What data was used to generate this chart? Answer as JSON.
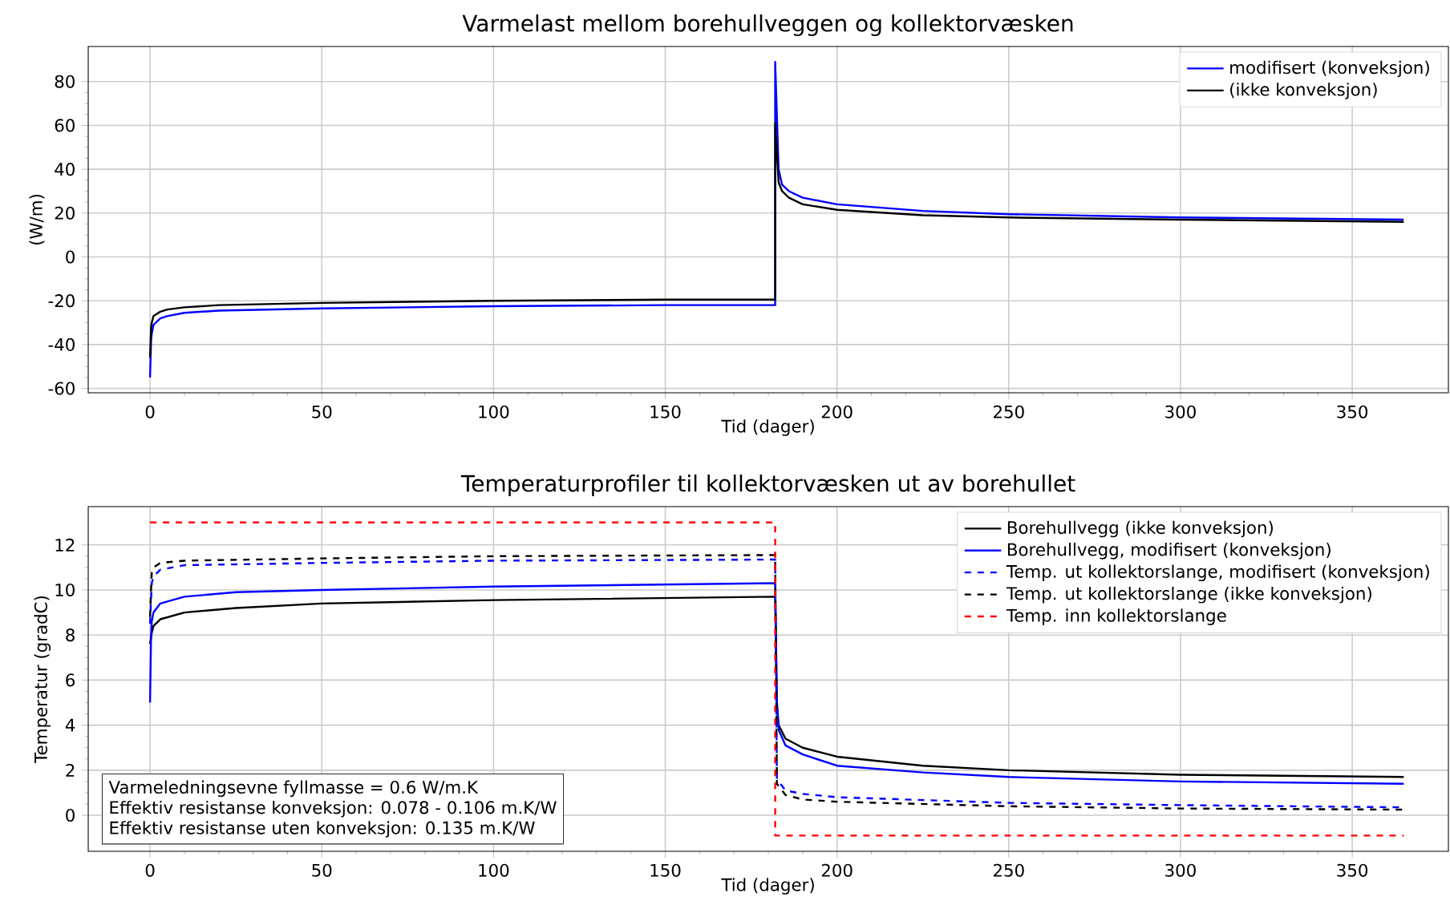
{
  "chart_data": [
    {
      "type": "line",
      "title": "Varmelast mellom borehullveggen og kollektorvæsken",
      "xlabel": "Tid (dager)",
      "ylabel": "(W/m)",
      "xlim": [
        -18,
        378
      ],
      "ylim": [
        -62,
        96
      ],
      "xticks": [
        0,
        50,
        100,
        150,
        200,
        250,
        300,
        350
      ],
      "yticks": [
        -60,
        -40,
        -20,
        0,
        20,
        40,
        60,
        80
      ],
      "grid": true,
      "legend": "top right",
      "series": [
        {
          "name": "modifisert (konveksjon)",
          "color": "#0000ff",
          "line_style": "solid",
          "x": [
            0,
            0.3,
            0.5,
            1,
            3,
            5,
            10,
            20,
            50,
            100,
            150,
            182,
            182,
            183,
            184,
            186,
            190,
            200,
            225,
            250,
            300,
            365
          ],
          "values": [
            -55,
            -38,
            -35,
            -31,
            -28,
            -27,
            -25.5,
            -24.5,
            -23.5,
            -22.5,
            -22,
            -22,
            89,
            40,
            33,
            30,
            27,
            24,
            21,
            19.5,
            18,
            17
          ]
        },
        {
          "name": "(ikke konveksjon)",
          "color": "#000000",
          "line_style": "solid",
          "x": [
            0,
            0.3,
            0.5,
            1,
            3,
            5,
            10,
            20,
            50,
            100,
            150,
            182,
            182,
            183,
            184,
            186,
            190,
            200,
            225,
            250,
            300,
            365
          ],
          "values": [
            -46,
            -32,
            -30,
            -27,
            -25,
            -24,
            -23,
            -22,
            -21,
            -20,
            -19.5,
            -19.5,
            61,
            34,
            30,
            27,
            24,
            21.5,
            19,
            18,
            17,
            16
          ]
        }
      ]
    },
    {
      "type": "line",
      "title": "Temperaturprofiler til kollektorvæsken ut av borehullet",
      "xlabel": "Tid (dager)",
      "ylabel": "Temperatur (gradC)",
      "xlim": [
        -18,
        378
      ],
      "ylim": [
        -1.6,
        13.7
      ],
      "xticks": [
        0,
        50,
        100,
        150,
        200,
        250,
        300,
        350
      ],
      "yticks": [
        0,
        2,
        4,
        6,
        8,
        10,
        12
      ],
      "grid": true,
      "legend": "top right",
      "annotations": [
        "Varmeledningsevne fyllmasse = 0.6 W/m.K",
        "Effektiv resistanse konveksjon: 0.078 - 0.106 m.K/W",
        "Effektiv resistanse uten konveksjon: 0.135 m.K/W"
      ],
      "series": [
        {
          "name": "Borehullvegg (ikke konveksjon)",
          "color": "#000000",
          "line_style": "solid",
          "x": [
            0,
            0.3,
            0.5,
            1,
            3,
            10,
            25,
            50,
            100,
            182,
            182.5,
            183,
            185,
            190,
            200,
            225,
            250,
            300,
            365
          ],
          "values": [
            7.6,
            7.9,
            8.1,
            8.4,
            8.7,
            9.0,
            9.2,
            9.4,
            9.55,
            9.7,
            5,
            4,
            3.4,
            3.0,
            2.6,
            2.2,
            2.0,
            1.8,
            1.7
          ]
        },
        {
          "name": "Borehullvegg, modifisert (konveksjon)",
          "color": "#0000ff",
          "line_style": "solid",
          "x": [
            0,
            0.3,
            0.5,
            1,
            3,
            10,
            25,
            50,
            100,
            182,
            182.5,
            183,
            185,
            190,
            200,
            225,
            250,
            300,
            365
          ],
          "values": [
            5,
            8,
            8.6,
            9,
            9.4,
            9.7,
            9.9,
            10.0,
            10.15,
            10.3,
            5,
            3.8,
            3.1,
            2.7,
            2.2,
            1.9,
            1.7,
            1.5,
            1.4
          ]
        },
        {
          "name": "Temp. ut kollektorslange, modifisert (konveksjon)",
          "color": "#0000ff",
          "line_style": "dashed",
          "x": [
            0,
            0.5,
            1,
            3,
            10,
            50,
            100,
            182,
            182.5,
            185,
            190,
            200,
            250,
            300,
            365
          ],
          "values": [
            8.5,
            10.3,
            10.6,
            10.9,
            11.1,
            11.2,
            11.3,
            11.35,
            1.6,
            1.1,
            0.95,
            0.8,
            0.55,
            0.45,
            0.35
          ]
        },
        {
          "name": "Temp. ut kollektorslange (ikke konveksjon)",
          "color": "#000000",
          "line_style": "dashed",
          "x": [
            0,
            0.5,
            1,
            3,
            10,
            50,
            100,
            182,
            182.5,
            185,
            190,
            200,
            250,
            300,
            365
          ],
          "values": [
            8.8,
            10.8,
            11.0,
            11.2,
            11.3,
            11.4,
            11.5,
            11.55,
            1.4,
            0.9,
            0.7,
            0.6,
            0.4,
            0.3,
            0.25
          ]
        },
        {
          "name": "Temp. inn kollektorslange",
          "color": "#ff0000",
          "line_style": "dashed",
          "x": [
            0,
            182,
            182,
            365
          ],
          "values": [
            13,
            13,
            -0.9,
            -0.9
          ]
        }
      ]
    }
  ]
}
